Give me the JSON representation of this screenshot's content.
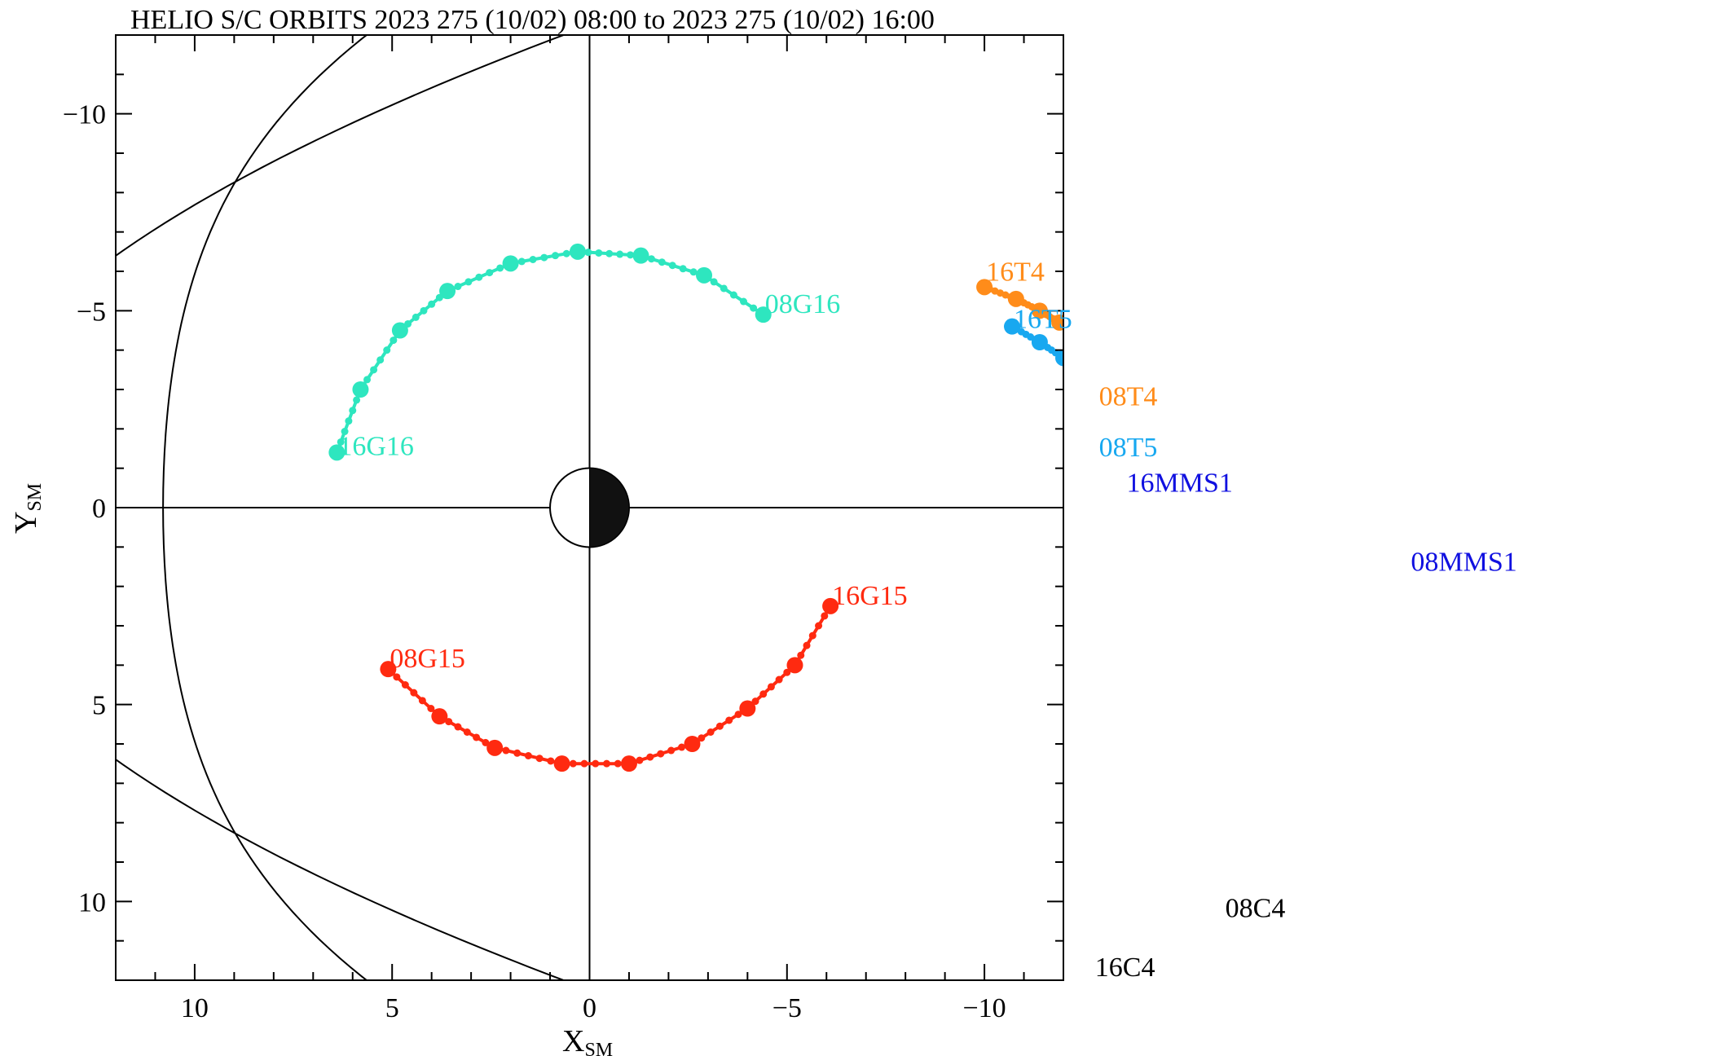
{
  "chart_data": {
    "type": "scatter",
    "title": "HELIO S/C ORBITS 2023 275 (10/02) 08:00 to 2023 275 (10/02) 16:00",
    "xlabel": "X",
    "xlabel_sub": "SM",
    "ylabel": "Y",
    "ylabel_sub": "SM",
    "xlim": [
      12,
      -12
    ],
    "ylim": [
      12,
      -12
    ],
    "xticks": [
      10,
      5,
      0,
      -5,
      -10
    ],
    "xtick_labels": [
      "10",
      "5",
      "0",
      "−5",
      "−10"
    ],
    "yticks": [
      -10,
      -5,
      0,
      5,
      10
    ],
    "ytick_labels": [
      "−10",
      "−5",
      "0",
      "5",
      "10"
    ],
    "grid": false,
    "crosshair_at_origin": true,
    "earth": {
      "x": 0,
      "y": 0,
      "radius": 1,
      "night_side": "negative-x"
    },
    "magnetopause_curve": true,
    "series": [
      {
        "name": "G16",
        "color": "#2ee6bf",
        "hour_x": [
          -4.4,
          -2.9,
          -1.3,
          0.3,
          2.0,
          3.6,
          4.8,
          5.8,
          6.4
        ],
        "hour_y": [
          -4.9,
          -5.9,
          -6.4,
          -6.5,
          -6.2,
          -5.5,
          -4.5,
          -3.0,
          -1.4
        ],
        "start_label": "08G16",
        "end_label": "16G16"
      },
      {
        "name": "G15",
        "color": "#ff2a10",
        "hour_x": [
          5.1,
          3.8,
          2.4,
          0.7,
          -1.0,
          -2.6,
          -4.0,
          -5.2,
          -6.1
        ],
        "hour_y": [
          4.1,
          5.3,
          6.1,
          6.5,
          6.5,
          6.0,
          5.1,
          4.0,
          2.5
        ],
        "start_label": "08G15",
        "end_label": "16G15"
      },
      {
        "name": "T4",
        "color": "#ff8c1a",
        "hour_x": [
          -10.0,
          -10.8,
          -11.4,
          -11.9
        ],
        "hour_y": [
          -5.6,
          -5.3,
          -5.0,
          -4.7
        ],
        "start_label": "08T4",
        "end_label": "16T4"
      },
      {
        "name": "T5",
        "color": "#18a8f0",
        "hour_x": [
          -10.7,
          -11.4,
          -12.0
        ],
        "hour_y": [
          -4.6,
          -4.2,
          -3.8
        ],
        "start_label": "08T5",
        "end_label": "16T5"
      }
    ],
    "offscale_labels": [
      {
        "text": "08T4",
        "color": "#ff8c1a",
        "x": -12.9,
        "y": -2.6
      },
      {
        "text": "08T5",
        "color": "#18a8f0",
        "x": -12.9,
        "y": -1.3
      },
      {
        "text": "16MMS1",
        "color": "#1010e0",
        "x": -13.6,
        "y": -0.4
      },
      {
        "text": "08MMS1",
        "color": "#1010e0",
        "x": -20.8,
        "y": 1.6
      },
      {
        "text": "08C4",
        "color": "#000000",
        "x": -16.1,
        "y": 10.4
      },
      {
        "text": "16C4",
        "color": "#000000",
        "x": -12.8,
        "y": 11.9
      }
    ]
  }
}
